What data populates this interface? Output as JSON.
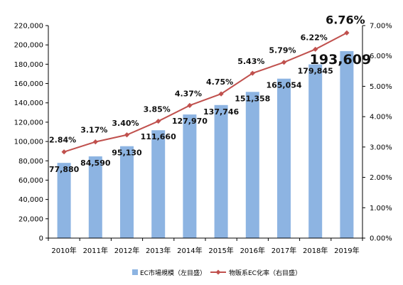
{
  "chart_data": {
    "type": "bar",
    "categories": [
      "2010年",
      "2011年",
      "2012年",
      "2013年",
      "2014年",
      "2015年",
      "2016年",
      "2017年",
      "2018年",
      "2019年"
    ],
    "series": [
      {
        "name": "EC市場規模（左目盛）",
        "type": "bar",
        "axis": "left",
        "values": [
          77880,
          84590,
          95130,
          111660,
          127970,
          137746,
          151358,
          165054,
          179845,
          193609
        ],
        "labels": [
          "77,880",
          "84,590",
          "95,130",
          "111,660",
          "127,970",
          "137,746",
          "151,358",
          "165,054",
          "179,845",
          "193,609"
        ]
      },
      {
        "name": "物販系EC化率（右目盛）",
        "type": "line",
        "axis": "right",
        "values": [
          2.84,
          3.17,
          3.4,
          3.85,
          4.37,
          4.75,
          5.43,
          5.79,
          6.22,
          6.76
        ],
        "labels": [
          "2.84%",
          "3.17%",
          "3.40%",
          "3.85%",
          "4.37%",
          "4.75%",
          "5.43%",
          "5.79%",
          "6.22%",
          "6.76%"
        ]
      }
    ],
    "y_left": {
      "ylim": [
        0,
        220000
      ],
      "ticks": [
        "0",
        "20,000",
        "40,000",
        "60,000",
        "80,000",
        "100,000",
        "120,000",
        "140,000",
        "160,000",
        "180,000",
        "200,000",
        "220,000"
      ]
    },
    "y_right": {
      "ylim": [
        0,
        7
      ],
      "ticks": [
        "0.00%",
        "1.00%",
        "2.00%",
        "3.00%",
        "4.00%",
        "5.00%",
        "6.00%",
        "7.00%"
      ]
    },
    "legend_position": "bottom",
    "grid": false
  },
  "colors": {
    "bar": "#8db4e2",
    "line": "#c0504d",
    "highlight_bar_label": "#1f3864",
    "highlight_line_label": "#c00000",
    "axis": "#000000"
  }
}
